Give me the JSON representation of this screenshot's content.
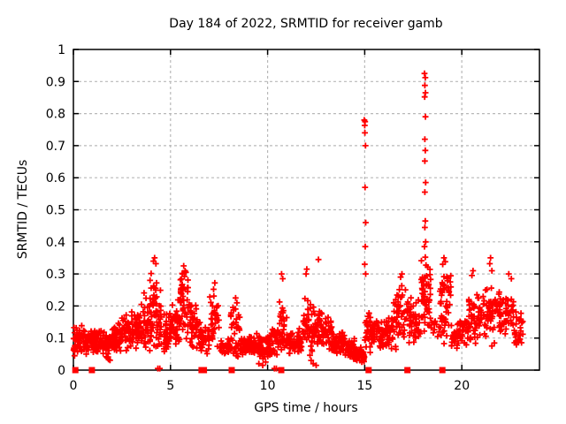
{
  "colors": {
    "marker": "#ff0000",
    "grid": "#b8b8b8",
    "axis": "#000000",
    "background": "#ffffff",
    "text": "#000000"
  },
  "chart_data": {
    "type": "scatter",
    "title": "Day 184 of 2022, SRMTID for receiver gamb",
    "xlabel": "GPS time / hours",
    "ylabel": "SRMTID / TECUs",
    "xlim": [
      0,
      24
    ],
    "ylim": [
      0,
      1
    ],
    "xticks": [
      0,
      5,
      10,
      15,
      20
    ],
    "xtick_labels": [
      "0",
      "5",
      "10",
      "15",
      "20"
    ],
    "yticks": [
      0,
      0.1,
      0.2,
      0.3,
      0.4,
      0.5,
      0.6,
      0.7,
      0.8,
      0.9,
      1
    ],
    "ytick_labels": [
      "0",
      "0.1",
      "0.2",
      "0.3",
      "0.4",
      "0.5",
      "0.6",
      "0.7",
      "0.8",
      "0.9",
      "1"
    ],
    "grid": true,
    "legend": "none",
    "series": [
      {
        "name": "srmtid-points",
        "marker": "plus",
        "color": "#ff0000",
        "clusters": [
          [
            0.0,
            0.5,
            45,
            0.095,
            0.05
          ],
          [
            0.5,
            1.0,
            45,
            0.09,
            0.045
          ],
          [
            1.0,
            1.5,
            45,
            0.09,
            0.05
          ],
          [
            1.5,
            2.0,
            45,
            0.075,
            0.05
          ],
          [
            2.0,
            2.5,
            45,
            0.1,
            0.055
          ],
          [
            2.5,
            3.0,
            45,
            0.12,
            0.065
          ],
          [
            3.0,
            3.5,
            48,
            0.13,
            0.075
          ],
          [
            3.5,
            4.0,
            48,
            0.15,
            0.1
          ],
          [
            4.0,
            4.5,
            52,
            0.19,
            0.13
          ],
          [
            4.5,
            5.0,
            45,
            0.12,
            0.07
          ],
          [
            5.0,
            5.5,
            45,
            0.15,
            0.09
          ],
          [
            5.5,
            6.0,
            46,
            0.2,
            0.12
          ],
          [
            6.0,
            6.5,
            42,
            0.14,
            0.08
          ],
          [
            6.5,
            7.0,
            40,
            0.1,
            0.05
          ],
          [
            7.0,
            7.5,
            35,
            0.16,
            0.11
          ],
          [
            7.5,
            8.1,
            25,
            0.07,
            0.035
          ],
          [
            8.1,
            8.6,
            35,
            0.12,
            0.09
          ],
          [
            8.6,
            9.5,
            70,
            0.08,
            0.04
          ],
          [
            9.5,
            10.2,
            55,
            0.07,
            0.045
          ],
          [
            10.2,
            10.6,
            30,
            0.09,
            0.05
          ],
          [
            10.6,
            11.0,
            35,
            0.13,
            0.1
          ],
          [
            11.0,
            11.8,
            60,
            0.085,
            0.045
          ],
          [
            11.8,
            12.3,
            42,
            0.13,
            0.1
          ],
          [
            12.3,
            12.8,
            42,
            0.13,
            0.07
          ],
          [
            12.8,
            13.3,
            40,
            0.12,
            0.06
          ],
          [
            13.3,
            14.0,
            55,
            0.085,
            0.045
          ],
          [
            14.0,
            14.5,
            40,
            0.065,
            0.035
          ],
          [
            14.5,
            15.0,
            40,
            0.05,
            0.03
          ],
          [
            15.0,
            15.3,
            25,
            0.12,
            0.08
          ],
          [
            15.3,
            15.9,
            45,
            0.11,
            0.05
          ],
          [
            15.9,
            16.5,
            45,
            0.12,
            0.06
          ],
          [
            16.5,
            17.1,
            45,
            0.17,
            0.11
          ],
          [
            17.1,
            17.9,
            55,
            0.15,
            0.08
          ],
          [
            17.9,
            18.4,
            58,
            0.24,
            0.13
          ],
          [
            18.4,
            18.85,
            12,
            0.12,
            0.05
          ],
          [
            18.85,
            19.45,
            52,
            0.2,
            0.13
          ],
          [
            19.45,
            20.1,
            45,
            0.11,
            0.05
          ],
          [
            20.1,
            20.8,
            50,
            0.15,
            0.09
          ],
          [
            20.8,
            21.7,
            60,
            0.17,
            0.1
          ],
          [
            21.7,
            22.7,
            70,
            0.18,
            0.08
          ],
          [
            22.7,
            23.15,
            30,
            0.12,
            0.07
          ]
        ],
        "outliers": [
          [
            14.98,
            0.78
          ],
          [
            15.02,
            0.775
          ],
          [
            15.0,
            0.763
          ],
          [
            15.01,
            0.74
          ],
          [
            15.04,
            0.7
          ],
          [
            15.02,
            0.57
          ],
          [
            15.05,
            0.46
          ],
          [
            15.03,
            0.385
          ],
          [
            15.0,
            0.33
          ],
          [
            15.05,
            0.3
          ],
          [
            18.08,
            0.925
          ],
          [
            18.12,
            0.912
          ],
          [
            18.1,
            0.888
          ],
          [
            18.13,
            0.865
          ],
          [
            18.09,
            0.852
          ],
          [
            18.13,
            0.79
          ],
          [
            18.1,
            0.72
          ],
          [
            18.12,
            0.685
          ],
          [
            18.1,
            0.652
          ],
          [
            18.14,
            0.585
          ],
          [
            18.1,
            0.555
          ],
          [
            18.12,
            0.465
          ],
          [
            18.1,
            0.445
          ],
          [
            18.14,
            0.4
          ],
          [
            18.08,
            0.385
          ],
          [
            18.12,
            0.352
          ],
          [
            4.18,
            0.35
          ],
          [
            4.12,
            0.34
          ],
          [
            4.25,
            0.332
          ],
          [
            3.95,
            0.28
          ],
          [
            5.68,
            0.325
          ],
          [
            5.75,
            0.31
          ],
          [
            5.62,
            0.3
          ],
          [
            7.28,
            0.272
          ],
          [
            7.22,
            0.252
          ],
          [
            8.35,
            0.225
          ],
          [
            8.42,
            0.21
          ],
          [
            10.72,
            0.3
          ],
          [
            10.78,
            0.285
          ],
          [
            11.98,
            0.3
          ],
          [
            12.02,
            0.315
          ],
          [
            12.62,
            0.345
          ],
          [
            12.35,
            0.02
          ],
          [
            12.5,
            0.015
          ],
          [
            9.55,
            0.02
          ],
          [
            9.75,
            0.015
          ],
          [
            9.9,
            0.025
          ],
          [
            14.85,
            0.025
          ],
          [
            0.06,
            0.045
          ],
          [
            16.92,
            0.3
          ],
          [
            16.85,
            0.29
          ],
          [
            19.08,
            0.35
          ],
          [
            19.15,
            0.338
          ],
          [
            19.02,
            0.33
          ],
          [
            20.58,
            0.31
          ],
          [
            20.52,
            0.295
          ],
          [
            21.48,
            0.35
          ],
          [
            21.44,
            0.332
          ],
          [
            21.55,
            0.31
          ],
          [
            22.42,
            0.3
          ],
          [
            22.55,
            0.285
          ],
          [
            4.35,
            0.005
          ],
          [
            4.45,
            0.005
          ],
          [
            10.35,
            0.005
          ],
          [
            10.45,
            0.005
          ]
        ]
      },
      {
        "name": "baseline-events",
        "marker": "filled-square",
        "color": "#ff0000",
        "y": 0,
        "x": [
          0.1,
          0.95,
          6.6,
          6.72,
          8.15,
          10.7,
          15.2,
          17.2,
          19.0
        ]
      }
    ]
  }
}
